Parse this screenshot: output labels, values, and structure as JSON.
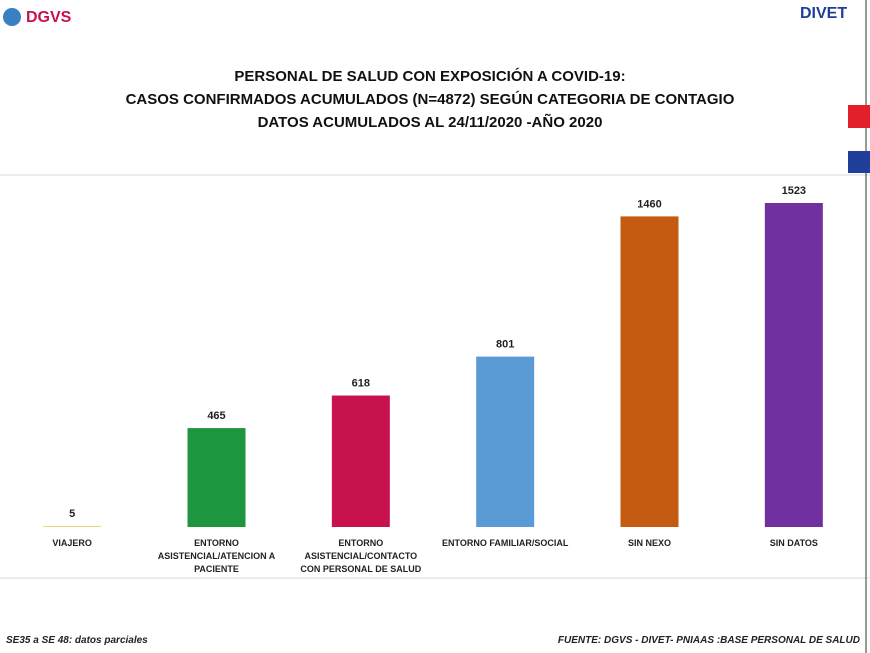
{
  "logos": [
    "DGVS",
    "DIVET"
  ],
  "chart_data": {
    "type": "bar",
    "title": [
      "PERSONAL DE SALUD CON EXPOSICIÓN A COVID-19:",
      "CASOS CONFIRMADOS  ACUMULADOS (N=4872) SEGÚN CATEGORIA DE CONTAGIO",
      "DATOS ACUMULADOS  AL 24/11/2020 -AÑO 2020"
    ],
    "categories": [
      "VIAJERO",
      "ENTORNO ASISTENCIAL/ATENCION A PACIENTE",
      "ENTORNO ASISTENCIAL/CONTACTO CON PERSONAL DE SALUD",
      "ENTORNO FAMILIAR/SOCIAL",
      "SIN NEXO",
      "SIN DATOS"
    ],
    "values": [
      5,
      465,
      618,
      801,
      1460,
      1523
    ],
    "colors": [
      "#f2d27a",
      "#1e9640",
      "#c8124e",
      "#5b9bd5",
      "#c55a11",
      "#7030a0"
    ],
    "note": "SE35 a SE 48: datos parciales",
    "source": "FUENTE: DGVS - DIVET- PNIAAS :BASE PERSONAL DE SALUD"
  }
}
